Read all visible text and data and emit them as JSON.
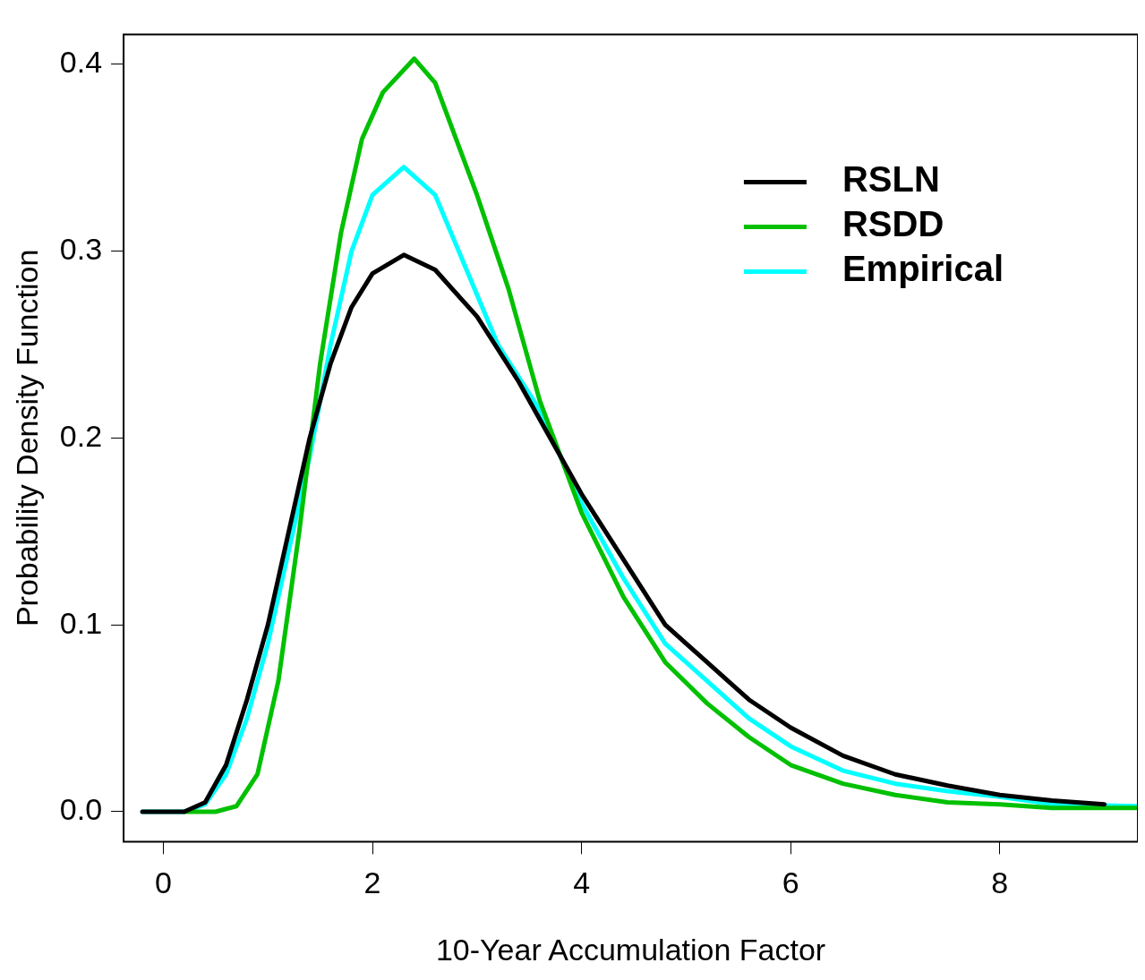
{
  "chart_data": {
    "type": "line",
    "xlabel": "10-Year Accumulation Factor",
    "ylabel": "Probability Density Function",
    "xlim": [
      -0.38,
      9.32
    ],
    "ylim": [
      -0.016,
      0.416
    ],
    "xticks": [
      0,
      2,
      4,
      6,
      8
    ],
    "yticks": [
      {
        "value": 0,
        "label": "0.0"
      },
      0.1,
      0.2,
      0.3,
      0.4
    ],
    "grid": false,
    "legend": "top right",
    "marker": "none",
    "line_style": "solid",
    "series": [
      {
        "name": "RSLN",
        "color": "#000000",
        "x": [
          -0.2,
          0.2,
          0.4,
          0.6,
          0.8,
          1.0,
          1.2,
          1.4,
          1.6,
          1.8,
          2.0,
          2.3,
          2.6,
          3.0,
          3.4,
          3.8,
          4.0,
          4.4,
          4.8,
          5.2,
          5.6,
          6.0,
          6.5,
          7.0,
          7.5,
          8.0,
          8.5,
          9.0
        ],
        "values": [
          0,
          0,
          0.005,
          0.025,
          0.06,
          0.1,
          0.15,
          0.2,
          0.24,
          0.27,
          0.288,
          0.298,
          0.29,
          0.265,
          0.23,
          0.19,
          0.17,
          0.135,
          0.1,
          0.08,
          0.06,
          0.045,
          0.03,
          0.02,
          0.014,
          0.009,
          0.006,
          0.004
        ]
      },
      {
        "name": "RSDD",
        "color": "#00c000",
        "x": [
          0.2,
          0.5,
          0.7,
          0.9,
          1.1,
          1.3,
          1.5,
          1.7,
          1.9,
          2.1,
          2.4,
          2.6,
          2.8,
          3.0,
          3.3,
          3.6,
          4.0,
          4.4,
          4.8,
          5.2,
          5.6,
          6.0,
          6.5,
          7.0,
          7.5,
          8.0,
          8.5,
          9.3
        ],
        "values": [
          0,
          0,
          0.003,
          0.02,
          0.07,
          0.15,
          0.24,
          0.31,
          0.36,
          0.385,
          0.403,
          0.39,
          0.36,
          0.33,
          0.28,
          0.22,
          0.16,
          0.115,
          0.08,
          0.058,
          0.04,
          0.025,
          0.015,
          0.009,
          0.005,
          0.004,
          0.002,
          0.002
        ]
      },
      {
        "name": "Empirical",
        "color": "#00ffff",
        "x": [
          -0.2,
          0.2,
          0.4,
          0.6,
          0.8,
          1.0,
          1.2,
          1.4,
          1.6,
          1.8,
          2.0,
          2.3,
          2.6,
          2.9,
          3.2,
          3.6,
          4.0,
          4.4,
          4.8,
          5.2,
          5.6,
          6.0,
          6.5,
          7.0,
          7.5,
          8.0,
          8.5,
          9.3
        ],
        "values": [
          0,
          0,
          0.004,
          0.02,
          0.05,
          0.09,
          0.14,
          0.19,
          0.25,
          0.3,
          0.33,
          0.345,
          0.33,
          0.29,
          0.25,
          0.215,
          0.165,
          0.125,
          0.09,
          0.07,
          0.05,
          0.035,
          0.022,
          0.015,
          0.011,
          0.008,
          0.004,
          0.003
        ]
      }
    ]
  }
}
